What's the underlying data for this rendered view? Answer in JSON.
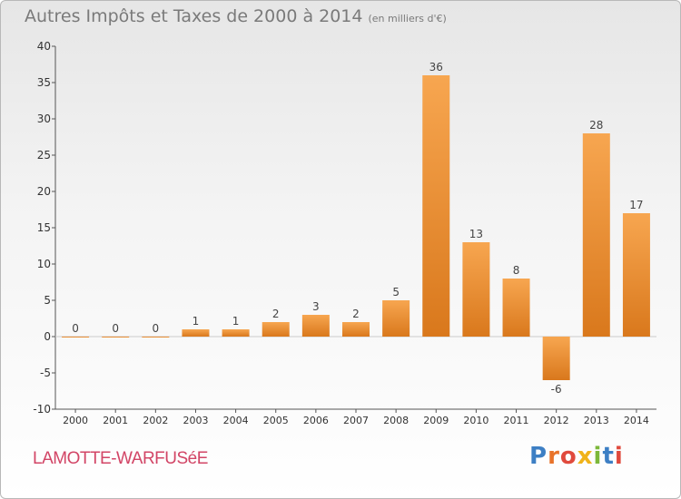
{
  "title": "Autres Impôts et Taxes de 2000 à 2014",
  "subtitle": "(en milliers d'€)",
  "commune": "LAMOTTE-WARFUSéE",
  "logo": {
    "text": "Proxiti",
    "colors": [
      "#3d7fc4",
      "#e8732a",
      "#e04a3d",
      "#f0b31a",
      "#7cb83a",
      "#3d7fc4",
      "#e04a3d"
    ]
  },
  "colors": {
    "bar_light": "#f7a650",
    "bar_dark": "#d9781c",
    "axis": "#555555",
    "grid": "#cccccc"
  },
  "chart_data": {
    "type": "bar",
    "title": "Autres Impôts et Taxes de 2000 à 2014",
    "subtitle": "(en milliers d'€)",
    "categories": [
      "2000",
      "2001",
      "2002",
      "2003",
      "2004",
      "2005",
      "2006",
      "2007",
      "2008",
      "2009",
      "2010",
      "2011",
      "2012",
      "2013",
      "2014"
    ],
    "values": [
      0,
      0,
      0,
      1,
      1,
      2,
      3,
      2,
      5,
      36,
      13,
      8,
      -6,
      28,
      17
    ],
    "data_labels": [
      "0",
      "0",
      "0",
      "1",
      "1",
      "2",
      "3",
      "2",
      "5",
      "36",
      "13",
      "8",
      "-6",
      "28",
      "17"
    ],
    "ylim": [
      -10,
      40
    ],
    "yticks": [
      40,
      35,
      30,
      25,
      20,
      15,
      10,
      5,
      0,
      -5,
      -10
    ],
    "grid": false
  }
}
